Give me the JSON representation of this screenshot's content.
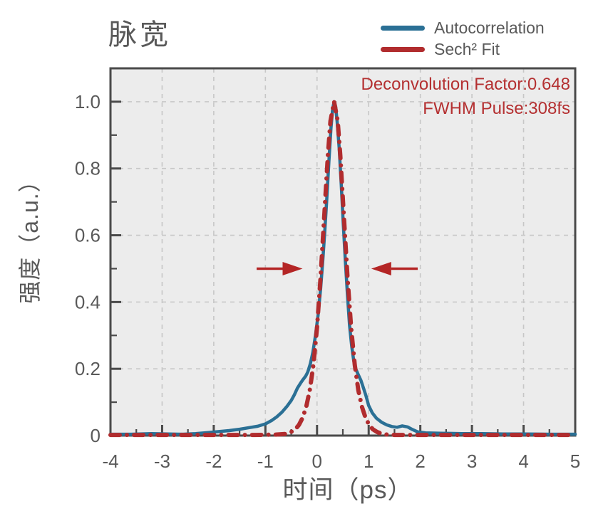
{
  "title": "脉宽",
  "legend": {
    "items": [
      {
        "label": "Autocorrelation",
        "color": "#2b7095"
      },
      {
        "label": "Sech² Fit",
        "color": "#b12c2e"
      }
    ]
  },
  "annotation": {
    "line1": "Deconvolution Factor:0.648",
    "line2": "FWHM Pulse:308fs",
    "color": "#b43031"
  },
  "chart_data": {
    "type": "line",
    "title": "脉宽",
    "xlabel": "时间（ps）",
    "ylabel": "强度（a.u.）",
    "xlim": [
      -4,
      5
    ],
    "ylim": [
      0,
      1.1
    ],
    "grid": true,
    "legend_position": "top-right-outside",
    "plot_bg": "#ececec",
    "grid_color": "#c7c7c7",
    "spine_color": "#4a4a4a",
    "tick_label_color": "#595959",
    "xticks": {
      "major": [
        -4,
        -3,
        -2,
        -1,
        0,
        1,
        2,
        3,
        4,
        5
      ],
      "labels": [
        "-4",
        "-3",
        "-2",
        "-1",
        "0",
        "1",
        "2",
        "3",
        "4",
        "5"
      ],
      "minor": [
        -3.5,
        -2.5,
        -1.5,
        -0.5,
        0.5,
        1.5,
        2.5,
        3.5,
        4.5
      ]
    },
    "yticks": {
      "major": [
        0,
        0.2,
        0.4,
        0.6,
        0.8,
        1.0
      ],
      "labels": [
        "0",
        "0.2",
        "0.4",
        "0.6",
        "0.8",
        "1.0"
      ],
      "minor": [
        0.1,
        0.3,
        0.5,
        0.7,
        0.9,
        1.1
      ]
    },
    "annotations": [
      "Deconvolution Factor:0.648",
      "FWHM Pulse:308fs"
    ],
    "series": [
      {
        "name": "Autocorrelation",
        "color": "#2b7095",
        "style": "solid",
        "width": 4.5,
        "points": [
          [
            -4.0,
            0.004
          ],
          [
            -3.6,
            0.004
          ],
          [
            -3.2,
            0.006
          ],
          [
            -2.9,
            0.005
          ],
          [
            -2.6,
            0.004
          ],
          [
            -2.35,
            0.006
          ],
          [
            -2.1,
            0.009
          ],
          [
            -1.9,
            0.012
          ],
          [
            -1.7,
            0.015
          ],
          [
            -1.5,
            0.019
          ],
          [
            -1.3,
            0.024
          ],
          [
            -1.15,
            0.028
          ],
          [
            -1.0,
            0.035
          ],
          [
            -0.88,
            0.045
          ],
          [
            -0.78,
            0.056
          ],
          [
            -0.68,
            0.07
          ],
          [
            -0.58,
            0.088
          ],
          [
            -0.5,
            0.105
          ],
          [
            -0.44,
            0.122
          ],
          [
            -0.38,
            0.142
          ],
          [
            -0.32,
            0.157
          ],
          [
            -0.27,
            0.168
          ],
          [
            -0.22,
            0.178
          ],
          [
            -0.18,
            0.19
          ],
          [
            -0.13,
            0.215
          ],
          [
            -0.08,
            0.25
          ],
          [
            -0.03,
            0.3
          ],
          [
            0.02,
            0.36
          ],
          [
            0.07,
            0.44
          ],
          [
            0.11,
            0.52
          ],
          [
            0.15,
            0.61
          ],
          [
            0.19,
            0.71
          ],
          [
            0.23,
            0.82
          ],
          [
            0.27,
            0.92
          ],
          [
            0.3,
            0.975
          ],
          [
            0.33,
            1.0
          ],
          [
            0.36,
            0.985
          ],
          [
            0.39,
            0.94
          ],
          [
            0.43,
            0.86
          ],
          [
            0.47,
            0.75
          ],
          [
            0.51,
            0.63
          ],
          [
            0.55,
            0.52
          ],
          [
            0.59,
            0.42
          ],
          [
            0.63,
            0.33
          ],
          [
            0.67,
            0.27
          ],
          [
            0.71,
            0.225
          ],
          [
            0.75,
            0.2
          ],
          [
            0.8,
            0.182
          ],
          [
            0.85,
            0.165
          ],
          [
            0.9,
            0.142
          ],
          [
            0.95,
            0.118
          ],
          [
            1.0,
            0.09
          ],
          [
            1.07,
            0.068
          ],
          [
            1.15,
            0.052
          ],
          [
            1.25,
            0.04
          ],
          [
            1.35,
            0.032
          ],
          [
            1.45,
            0.027
          ],
          [
            1.55,
            0.025
          ],
          [
            1.65,
            0.029
          ],
          [
            1.75,
            0.026
          ],
          [
            1.85,
            0.018
          ],
          [
            1.95,
            0.011
          ],
          [
            2.1,
            0.008
          ],
          [
            2.4,
            0.007
          ],
          [
            2.8,
            0.006
          ],
          [
            3.2,
            0.006
          ],
          [
            3.6,
            0.005
          ],
          [
            4.0,
            0.005
          ],
          [
            4.5,
            0.004
          ],
          [
            5.0,
            0.004
          ]
        ]
      },
      {
        "name": "Sech² Fit",
        "color": "#b12c2e",
        "style": "dash-dot",
        "width": 6,
        "points": [
          [
            -4.0,
            0.002
          ],
          [
            -3.0,
            0.002
          ],
          [
            -2.0,
            0.002
          ],
          [
            -1.2,
            0.002
          ],
          [
            -0.8,
            0.003
          ],
          [
            -0.7,
            0.004
          ],
          [
            -0.6,
            0.005
          ],
          [
            -0.5,
            0.011
          ],
          [
            -0.42,
            0.019
          ],
          [
            -0.35,
            0.032
          ],
          [
            -0.28,
            0.053
          ],
          [
            -0.21,
            0.086
          ],
          [
            -0.14,
            0.136
          ],
          [
            -0.07,
            0.212
          ],
          [
            0.0,
            0.324
          ],
          [
            0.07,
            0.476
          ],
          [
            0.14,
            0.658
          ],
          [
            0.21,
            0.84
          ],
          [
            0.26,
            0.942
          ],
          [
            0.33,
            1.0
          ],
          [
            0.4,
            0.942
          ],
          [
            0.45,
            0.84
          ],
          [
            0.52,
            0.658
          ],
          [
            0.59,
            0.476
          ],
          [
            0.66,
            0.324
          ],
          [
            0.73,
            0.212
          ],
          [
            0.8,
            0.136
          ],
          [
            0.87,
            0.086
          ],
          [
            0.94,
            0.053
          ],
          [
            1.01,
            0.032
          ],
          [
            1.08,
            0.019
          ],
          [
            1.16,
            0.011
          ],
          [
            1.26,
            0.005
          ],
          [
            1.36,
            0.003
          ],
          [
            1.5,
            0.002
          ],
          [
            2.0,
            0.002
          ],
          [
            3.0,
            0.002
          ],
          [
            4.0,
            0.002
          ],
          [
            5.0,
            0.002
          ]
        ]
      }
    ],
    "arrows": {
      "color": "#b42525",
      "y": 0.5,
      "items": [
        {
          "tail": -1.17,
          "tip": -0.28
        },
        {
          "tail": 1.95,
          "tip": 1.05
        }
      ]
    }
  }
}
